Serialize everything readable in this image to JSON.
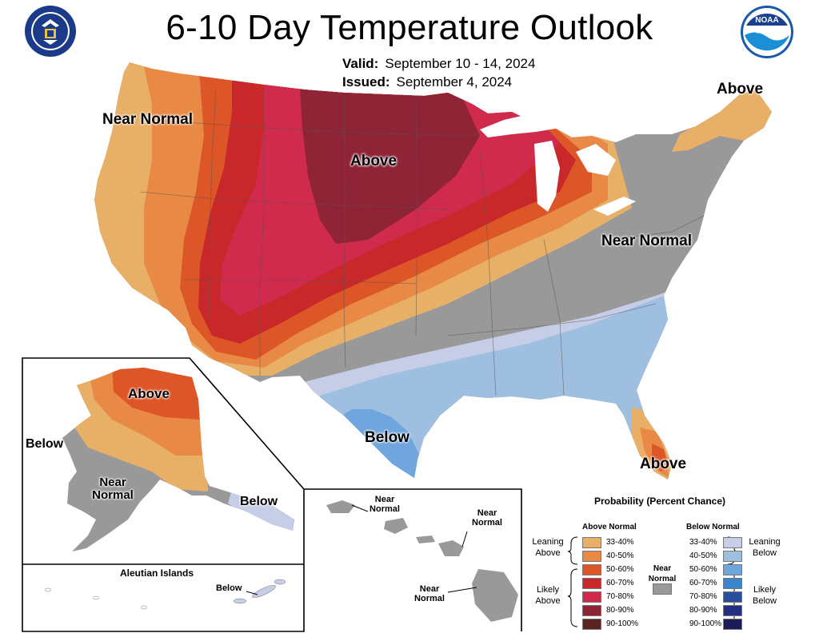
{
  "header": {
    "title": "6-10 Day Temperature Outlook",
    "valid_label": "Valid:",
    "valid_value": "September 10 - 14, 2024",
    "issued_label": "Issued:",
    "issued_value": "September 4, 2024"
  },
  "logos": {
    "left": "department-of-commerce-seal",
    "right": "noaa-logo",
    "right_text": "NOAA"
  },
  "map_labels": {
    "conus_nw": "Near Normal",
    "conus_north": "Above",
    "conus_ne": "Above",
    "conus_east": "Near Normal",
    "conus_south": "Below",
    "conus_fl": "Above",
    "ak_north": "Above",
    "ak_west": "Below",
    "ak_south": "Near Normal",
    "ak_se": "Below",
    "aleutian_title": "Aleutian Islands",
    "aleutian_below": "Below",
    "hi_1": "Near Normal",
    "hi_2": "Near Normal",
    "hi_3": "Near Normal"
  },
  "legend": {
    "title": "Probability (Percent Chance)",
    "above_header": "Above Normal",
    "below_header": "Below Normal",
    "near_label": "Near Normal",
    "above_leaning": "Leaning Above",
    "above_likely": "Likely Above",
    "below_leaning": "Leaning Below",
    "below_likely": "Likely Below",
    "above": [
      {
        "range": "33-40%",
        "color": "#e8b066"
      },
      {
        "range": "40-50%",
        "color": "#e88a46"
      },
      {
        "range": "50-60%",
        "color": "#dd5628"
      },
      {
        "range": "60-70%",
        "color": "#c8282a"
      },
      {
        "range": "70-80%",
        "color": "#d02a4d"
      },
      {
        "range": "80-90%",
        "color": "#8e2436"
      },
      {
        "range": "90-100%",
        "color": "#5a2424"
      }
    ],
    "below": [
      {
        "range": "33-40%",
        "color": "#c6cde6"
      },
      {
        "range": "40-50%",
        "color": "#9fbfe0"
      },
      {
        "range": "50-60%",
        "color": "#6fa6dd"
      },
      {
        "range": "60-70%",
        "color": "#3a86cc"
      },
      {
        "range": "70-80%",
        "color": "#2a4e9e"
      },
      {
        "range": "80-90%",
        "color": "#252e82"
      },
      {
        "range": "90-100%",
        "color": "#1c1a58"
      }
    ],
    "near_color": "#999999"
  }
}
